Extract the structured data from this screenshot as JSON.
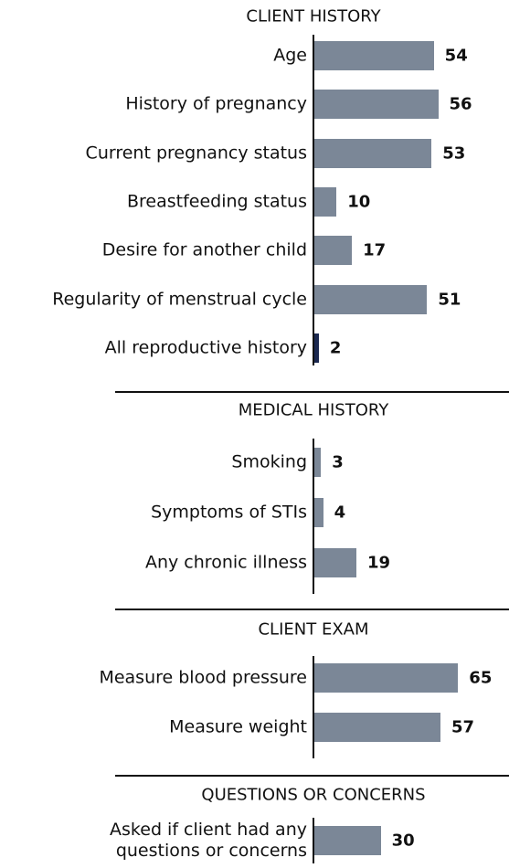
{
  "chart_data": [
    {
      "type": "bar",
      "title": "CLIENT HISTORY",
      "categories": [
        "Age",
        "History of pregnancy",
        "Current pregnancy status",
        "Breastfeeding status",
        "Desire for another child",
        "Regularity of menstrual cycle",
        "All reproductive history"
      ],
      "values": [
        54,
        56,
        53,
        10,
        17,
        51,
        2
      ],
      "colors": [
        "#7b8797",
        "#7b8797",
        "#7b8797",
        "#7b8797",
        "#7b8797",
        "#7b8797",
        "#1b2850"
      ]
    },
    {
      "type": "bar",
      "title": "MEDICAL HISTORY",
      "categories": [
        "Smoking",
        "Symptoms of STIs",
        "Any chronic illness"
      ],
      "values": [
        3,
        4,
        19
      ],
      "color": "#7b8797"
    },
    {
      "type": "bar",
      "title": "CLIENT EXAM",
      "categories": [
        "Measure blood pressure",
        "Measure weight"
      ],
      "values": [
        65,
        57
      ],
      "color": "#7b8797"
    },
    {
      "type": "bar",
      "title": "QUESTIONS OR CONCERNS",
      "categories": [
        "Asked if client had any questions or concerns"
      ],
      "values": [
        30
      ],
      "color": "#7b8797"
    }
  ]
}
